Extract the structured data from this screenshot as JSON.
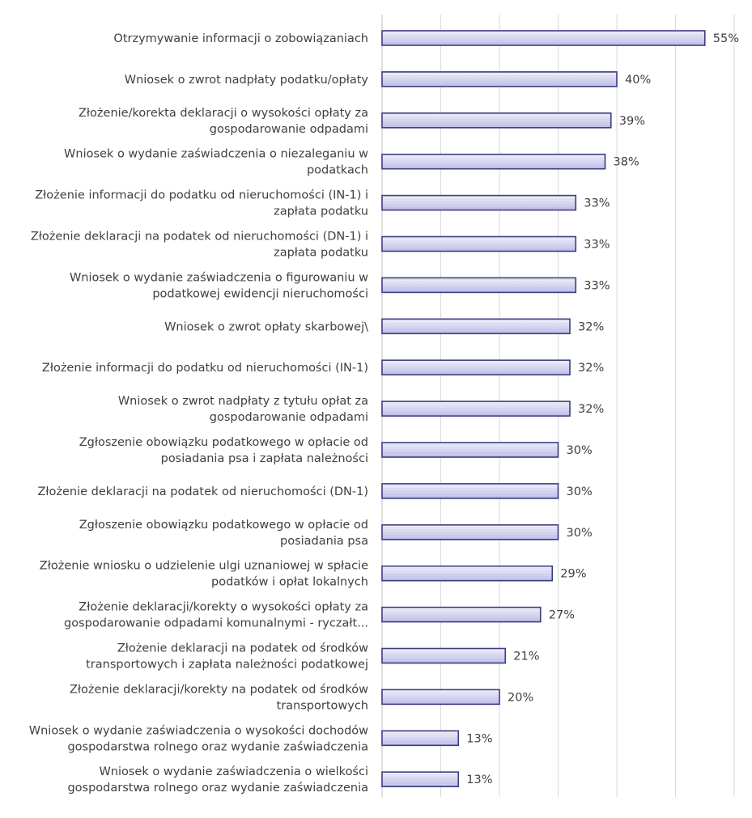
{
  "chart_data": {
    "type": "bar",
    "orientation": "horizontal",
    "title": "",
    "xlabel": "",
    "ylabel": "",
    "xlim": [
      0,
      60
    ],
    "grid": true,
    "legend": "none",
    "value_suffix": "%",
    "colors": {
      "bar_fill_top": "#f4f4fb",
      "bar_fill_bottom": "#b8b8e6",
      "bar_stripe": "#d2d2f0",
      "bar_border": "#3c3c80",
      "grid": "#d9d9d9",
      "text": "#404040"
    },
    "categories": [
      [
        "Otrzymywanie informacji o zobowiązaniach"
      ],
      [
        "Wniosek o zwrot nadpłaty podatku/opłaty"
      ],
      [
        "Złożenie/korekta deklaracji o wysokości opłaty za",
        "gospodarowanie odpadami"
      ],
      [
        "Wniosek o wydanie zaświadczenia o niezaleganiu w",
        "podatkach"
      ],
      [
        "Złożenie informacji do podatku od nieruchomości (IN-1) i",
        "zapłata podatku"
      ],
      [
        "Złożenie deklaracji na podatek od nieruchomości (DN-1) i",
        "zapłata podatku"
      ],
      [
        "Wniosek o wydanie zaświadczenia o figurowaniu w",
        "podatkowej ewidencji nieruchomości"
      ],
      [
        "Wniosek o zwrot opłaty skarbowej\\"
      ],
      [
        "Złożenie informacji do podatku od nieruchomości (IN-1)"
      ],
      [
        "Wniosek o zwrot nadpłaty z tytułu opłat za",
        "gospodarowanie odpadami"
      ],
      [
        "Zgłoszenie obowiązku podatkowego w opłacie od",
        "posiadania psa i zapłata należności"
      ],
      [
        "Złożenie deklaracji na podatek od nieruchomości (DN-1)"
      ],
      [
        "Zgłoszenie obowiązku podatkowego w opłacie od",
        "posiadania psa"
      ],
      [
        "Złożenie wniosku o udzielenie ulgi uznaniowej w spłacie",
        "podatków i opłat lokalnych"
      ],
      [
        "Złożenie deklaracji/korekty o wysokości opłaty za",
        "gospodarowanie odpadami komunalnymi - ryczałt..."
      ],
      [
        "Złożenie deklaracji na podatek od środków",
        "transportowych i zapłata należności podatkowej"
      ],
      [
        "Złożenie deklaracji/korekty na podatek od środków",
        "transportowych"
      ],
      [
        "Wniosek o wydanie zaświadczenia o wysokości dochodów",
        "gospodarstwa rolnego oraz wydanie zaświadczenia"
      ],
      [
        "Wniosek o wydanie zaświadczenia o wielkości",
        "gospodarstwa rolnego oraz wydanie zaświadczenia"
      ]
    ],
    "values": [
      55,
      40,
      39,
      38,
      33,
      33,
      33,
      32,
      32,
      32,
      30,
      30,
      30,
      29,
      27,
      21,
      20,
      13,
      13
    ],
    "value_labels": [
      "55%",
      "40%",
      "39%",
      "38%",
      "33%",
      "33%",
      "33%",
      "32%",
      "32%",
      "32%",
      "30%",
      "30%",
      "30%",
      "29%",
      "27%",
      "21%",
      "20%",
      "13%",
      "13%"
    ]
  }
}
